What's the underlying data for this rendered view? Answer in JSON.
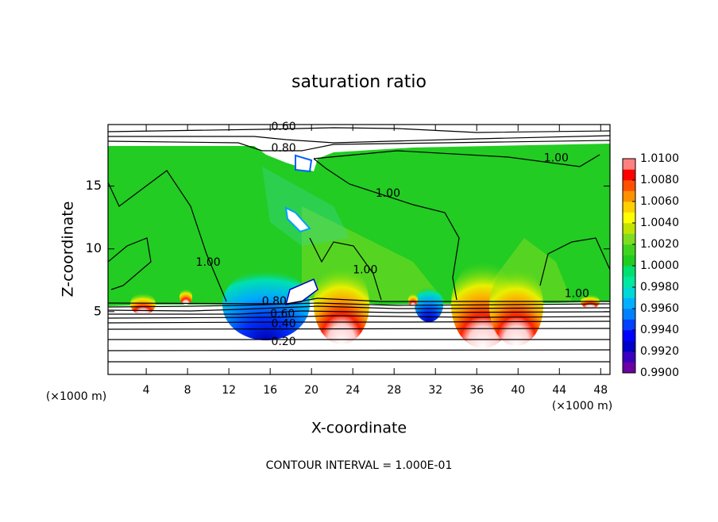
{
  "chart_data": {
    "type": "contour",
    "title": "saturation ratio",
    "x_label": "X-coordinate",
    "y_label": "Z-coordinate",
    "x_unit_left": "(×1000 m)",
    "x_unit_right": "(×1000 m)",
    "footnote": "CONTOUR INTERVAL = 1.000E-01",
    "xlim": [
      0.3,
      48.9
    ],
    "ylim": [
      0,
      19.9
    ],
    "xticks": [
      4,
      8,
      12,
      16,
      20,
      24,
      28,
      32,
      36,
      40,
      44,
      48
    ],
    "yticks": [
      5,
      10,
      15
    ],
    "contour_labels": [
      {
        "value": 0.6,
        "label": "0.60",
        "x": 17.3,
        "z": 19.7
      },
      {
        "value": 0.8,
        "label": "0.80",
        "x": 17.3,
        "z": 18.0
      },
      {
        "value": 1.0,
        "label": "1.00",
        "x": 43.7,
        "z": 17.2
      },
      {
        "value": 1.0,
        "label": "1.00",
        "x": 27.4,
        "z": 14.4
      },
      {
        "value": 1.0,
        "label": "1.00",
        "x": 10.0,
        "z": 8.9
      },
      {
        "value": 1.0,
        "label": "1.00",
        "x": 25.2,
        "z": 8.3
      },
      {
        "value": 1.0,
        "label": "1.00",
        "x": 45.7,
        "z": 6.4
      },
      {
        "value": 0.8,
        "label": "0.80",
        "x": 16.4,
        "z": 5.8
      },
      {
        "value": 0.6,
        "label": "0.60",
        "x": 17.2,
        "z": 4.8
      },
      {
        "value": 0.4,
        "label": "0.40",
        "x": 17.3,
        "z": 4.0
      },
      {
        "value": 0.2,
        "label": "0.20",
        "x": 17.3,
        "z": 2.6
      }
    ],
    "colorbar": {
      "lim": [
        0.99,
        1.01
      ],
      "ticks": [
        {
          "value": 1.01,
          "label": "1.0100"
        },
        {
          "value": 1.008,
          "label": "1.0080"
        },
        {
          "value": 1.006,
          "label": "1.0060"
        },
        {
          "value": 1.004,
          "label": "1.0040"
        },
        {
          "value": 1.002,
          "label": "1.0020"
        },
        {
          "value": 1.0,
          "label": "1.0000"
        },
        {
          "value": 0.998,
          "label": "0.9980"
        },
        {
          "value": 0.996,
          "label": "0.9960"
        },
        {
          "value": 0.994,
          "label": "0.9940"
        },
        {
          "value": 0.992,
          "label": "0.9920"
        },
        {
          "value": 0.99,
          "label": "0.9900"
        }
      ],
      "colors": [
        "#6a00a0",
        "#3a00c0",
        "#0000c8",
        "#0000ff",
        "#0040ff",
        "#0080ff",
        "#00b0ff",
        "#00d8d8",
        "#00e8a0",
        "#00e070",
        "#20cc20",
        "#40d420",
        "#80dc20",
        "#c0e400",
        "#ffff00",
        "#ffd000",
        "#ff9000",
        "#ff5000",
        "#ff0000",
        "#ff8080"
      ]
    }
  }
}
